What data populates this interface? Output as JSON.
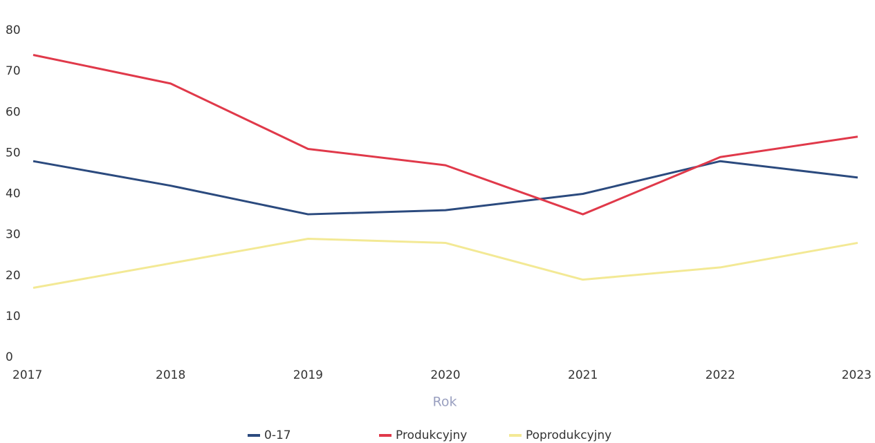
{
  "chart_data": {
    "type": "line",
    "categories": [
      "2017",
      "2018",
      "2019",
      "2020",
      "2021",
      "2022",
      "2023"
    ],
    "series": [
      {
        "name": "0-17",
        "color": "#2b4a7e",
        "values": [
          48,
          42,
          35,
          36,
          40,
          48,
          44
        ]
      },
      {
        "name": "Produkcyjny",
        "color": "#e0394a",
        "values": [
          74,
          67,
          51,
          47,
          35,
          49,
          54
        ]
      },
      {
        "name": "Poprodukcyjny",
        "color": "#f3e995",
        "values": [
          17,
          23,
          29,
          28,
          19,
          22,
          28
        ]
      }
    ],
    "x_label": "Rok",
    "ylim": [
      0,
      80
    ],
    "yticks": [
      0,
      10,
      20,
      30,
      40,
      50,
      60,
      70,
      80
    ],
    "grid": false,
    "legend": "bottom"
  }
}
